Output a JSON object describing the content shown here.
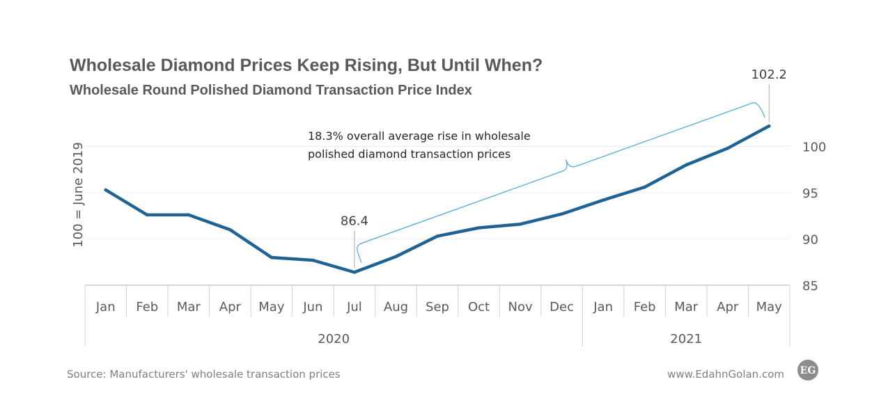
{
  "chart_data": {
    "type": "line",
    "title": "Wholesale Diamond Prices Keep Rising, But Until When?",
    "subtitle": "Wholesale Round Polished Diamond Transaction Price Index",
    "ylabel": "100 = June 2019",
    "ylim": [
      85,
      105
    ],
    "yticks": [
      85,
      90,
      95,
      100
    ],
    "y_axis_side": "right",
    "grid": "horizontal",
    "categories": [
      "Jan",
      "Feb",
      "Mar",
      "Apr",
      "May",
      "Jun",
      "Jul",
      "Aug",
      "Sep",
      "Oct",
      "Nov",
      "Dec",
      "Jan",
      "Feb",
      "Mar",
      "Apr",
      "May"
    ],
    "year_groups": [
      {
        "label": "2020",
        "count": 12
      },
      {
        "label": "2021",
        "count": 5
      }
    ],
    "series": [
      {
        "color": "#1f6396",
        "values": [
          95.3,
          92.6,
          92.6,
          91.0,
          88.0,
          87.7,
          86.4,
          88.1,
          90.3,
          91.2,
          91.6,
          92.7,
          94.2,
          95.6,
          98.0,
          99.8,
          102.2
        ]
      }
    ],
    "data_labels": [
      {
        "index": 6,
        "text": "86.4"
      },
      {
        "index": 16,
        "text": "102.2"
      }
    ],
    "annotation": {
      "lines": [
        "18.3% overall average rise in wholesale",
        "polished diamond transaction prices"
      ],
      "bracket_color": "#4aa8d8",
      "from_index": 6,
      "to_index": 16
    }
  },
  "footer": {
    "source": "Source: Manufacturers' wholesale transaction prices",
    "website": "www.EdahnGolan.com",
    "logo_text": "EG"
  }
}
